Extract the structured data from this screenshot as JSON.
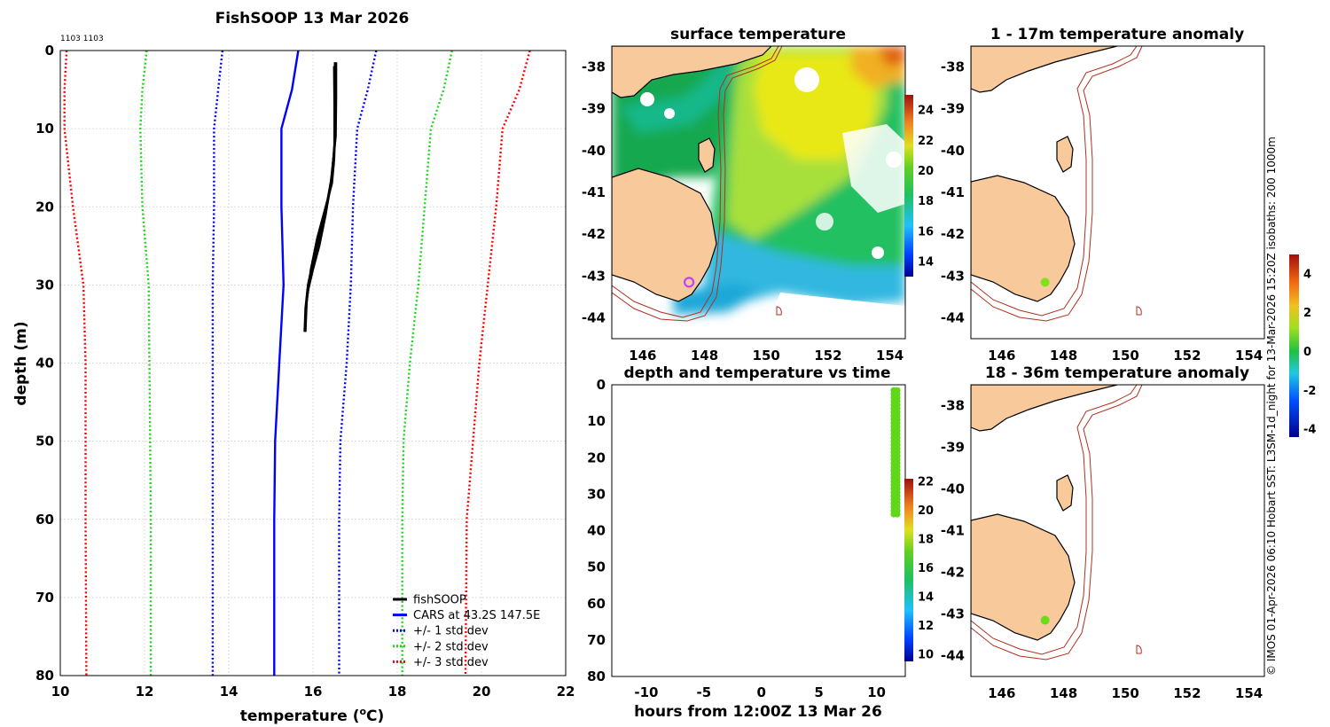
{
  "credit": "© IMOS 01-Apr-2026 06:10 Hobart SST: L3SM-1d_night for 13-Mar-2026 15:20Z isobaths: 200  1000m",
  "colors": {
    "land": "#f8c99a",
    "coast": "#000000",
    "isobath": "#b03020",
    "fishsoop": "#000000",
    "cars": "#0000ff",
    "sd1": "#0000ff",
    "sd2": "#22d322",
    "sd3": "#ff0000",
    "gap": "#ffffff",
    "marker_anomaly": "#7fe11d",
    "marker_station": "#c040ff"
  },
  "chart_data": [
    {
      "id": "profile",
      "type": "line",
      "title": "FishSOOP 13 Mar 2026",
      "subtitle": "1103 1103",
      "xlabel": "temperature (",
      "xlabel_sup": "o",
      "xlabel_suffix": "C)",
      "ylabel": "depth (m)",
      "xlim": [
        10,
        22
      ],
      "ylim": [
        0,
        80
      ],
      "y_reversed": true,
      "xticks": [
        10,
        12,
        14,
        16,
        18,
        20,
        22
      ],
      "yticks": [
        0,
        10,
        20,
        30,
        40,
        50,
        60,
        70,
        80
      ],
      "grid": true,
      "legend_position": "bottom-right",
      "series": [
        {
          "name": "fishSOOP",
          "style": "solid",
          "color": "#000000",
          "lines": [
            {
              "x": [
                16.52,
                16.52,
                16.53,
                16.5,
                16.45,
                16.3,
                16.1,
                15.95,
                15.85,
                15.82
              ],
              "y": [
                1.5,
                5,
                10,
                14,
                17,
                20,
                24,
                28,
                32,
                36
              ]
            },
            {
              "x": [
                16.52,
                16.53,
                16.52,
                16.48,
                16.4,
                16.25,
                16.05,
                15.9,
                15.83,
                15.82
              ],
              "y": [
                2,
                6,
                11,
                15,
                18,
                22,
                26,
                30,
                33,
                35
              ]
            },
            {
              "x": [
                16.5,
                16.51,
                16.51,
                16.45,
                16.35,
                16.18,
                16.0,
                15.88,
                15.82,
                15.8
              ],
              "y": [
                2,
                7,
                12,
                16,
                19,
                23,
                27,
                30,
                33,
                36
              ]
            },
            {
              "x": [
                16.55,
                16.55,
                16.54,
                16.48,
                16.42,
                16.3,
                16.15,
                16.0,
                15.87,
                15.82
              ],
              "y": [
                1.5,
                6,
                11,
                14,
                17,
                21,
                25,
                28,
                31,
                34
              ]
            }
          ]
        },
        {
          "name": "CARS at 43.2S 147.5E",
          "style": "solid",
          "color": "#0000ff",
          "x": [
            15.65,
            15.5,
            15.25,
            15.25,
            15.3,
            15.2,
            15.1,
            15.08,
            15.08
          ],
          "y": [
            0,
            5,
            10,
            20,
            30,
            40,
            50,
            60,
            80
          ]
        },
        {
          "name": "+/- 1 std dev",
          "style": "dotted",
          "color": "#0000ff",
          "x": [
            13.85,
            13.75,
            13.65,
            13.65,
            13.62,
            13.62,
            13.62,
            13.62
          ],
          "y": [
            0,
            5,
            10,
            20,
            30,
            50,
            60,
            80
          ]
        },
        {
          "name": "+/- 1 std dev upper",
          "legend": false,
          "style": "dotted",
          "color": "#0000ff",
          "x": [
            17.5,
            17.3,
            17.05,
            16.95,
            16.9,
            16.8,
            16.65,
            16.62,
            16.62
          ],
          "y": [
            0,
            5,
            10,
            20,
            30,
            40,
            50,
            60,
            80
          ]
        },
        {
          "name": "+/- 2 std dev",
          "style": "dotted",
          "color": "#22d322",
          "x": [
            12.05,
            11.95,
            11.9,
            11.95,
            12.1,
            12.15,
            12.15
          ],
          "y": [
            0,
            5,
            10,
            20,
            30,
            60,
            80
          ]
        },
        {
          "name": "+/- 2 std dev upper",
          "legend": false,
          "style": "dotted",
          "color": "#22d322",
          "x": [
            19.3,
            19.1,
            18.8,
            18.65,
            18.5,
            18.3,
            18.15,
            18.12,
            18.12
          ],
          "y": [
            0,
            5,
            10,
            20,
            30,
            40,
            50,
            60,
            80
          ]
        },
        {
          "name": "+/- 3 std dev",
          "style": "dotted",
          "color": "#ff0000",
          "x": [
            10.15,
            10.1,
            10.1,
            10.3,
            10.55,
            10.6,
            10.6,
            10.62
          ],
          "y": [
            0,
            5,
            10,
            20,
            30,
            40,
            60,
            80
          ]
        },
        {
          "name": "+/- 3 std dev upper",
          "legend": false,
          "style": "dotted",
          "color": "#ff0000",
          "x": [
            21.15,
            20.9,
            20.5,
            20.35,
            20.15,
            19.95,
            19.8,
            19.65,
            19.62
          ],
          "y": [
            0,
            5,
            10,
            20,
            30,
            40,
            50,
            60,
            80
          ]
        }
      ]
    },
    {
      "id": "surface",
      "type": "heatmap",
      "title": "surface temperature",
      "xlim": [
        145,
        154.5
      ],
      "ylim": [
        -44.5,
        -37.5
      ],
      "xticks": [
        146,
        148,
        150,
        152,
        154
      ],
      "yticks": [
        -38,
        -39,
        -40,
        -41,
        -42,
        -43,
        -44
      ],
      "colorbar": {
        "ticks": [
          14,
          16,
          18,
          20,
          22,
          24
        ],
        "range": [
          13,
          25
        ]
      },
      "marker": {
        "lon": 147.5,
        "lat": -43.15
      }
    },
    {
      "id": "anom_shallow",
      "type": "scatter",
      "title": "1 - 17m temperature anomaly",
      "xlim": [
        145,
        154.5
      ],
      "ylim": [
        -44.5,
        -37.5
      ],
      "xticks": [
        146,
        148,
        150,
        152,
        154
      ],
      "yticks": [
        -38,
        -39,
        -40,
        -41,
        -42,
        -43,
        -44
      ],
      "points": [
        {
          "lon": 147.4,
          "lat": -43.15,
          "anomaly": 0.8
        }
      ]
    },
    {
      "id": "time",
      "type": "scatter",
      "title": "depth and temperature vs time",
      "xlabel": "hours from 12:00Z 13 Mar 26",
      "xlim": [
        -13,
        12.5
      ],
      "ylim": [
        0,
        80
      ],
      "y_reversed": true,
      "xticks": [
        -10,
        -5,
        0,
        5,
        10
      ],
      "yticks": [
        0,
        10,
        20,
        30,
        40,
        50,
        60,
        70,
        80
      ],
      "colorbar": {
        "ticks": [
          10,
          12,
          14,
          16,
          18,
          20,
          22
        ],
        "range": [
          9.5,
          22.2
        ]
      },
      "points": {
        "hours": [
          11.5,
          11.8
        ],
        "depth_min": 1.5,
        "depth_max": 35.5,
        "depth_step": 1,
        "temperature": 16.5
      }
    },
    {
      "id": "anom_deep",
      "type": "scatter",
      "title": "18 - 36m temperature anomaly",
      "xlim": [
        145,
        154.5
      ],
      "ylim": [
        -44.5,
        -37.5
      ],
      "xticks": [
        146,
        148,
        150,
        152,
        154
      ],
      "yticks": [
        -38,
        -39,
        -40,
        -41,
        -42,
        -43,
        -44
      ],
      "colorbar": {
        "ticks": [
          -4,
          -2,
          0,
          2,
          4
        ],
        "range": [
          -4.4,
          5
        ]
      },
      "points": [
        {
          "lon": 147.4,
          "lat": -43.15,
          "anomaly": 0.5
        }
      ]
    }
  ]
}
